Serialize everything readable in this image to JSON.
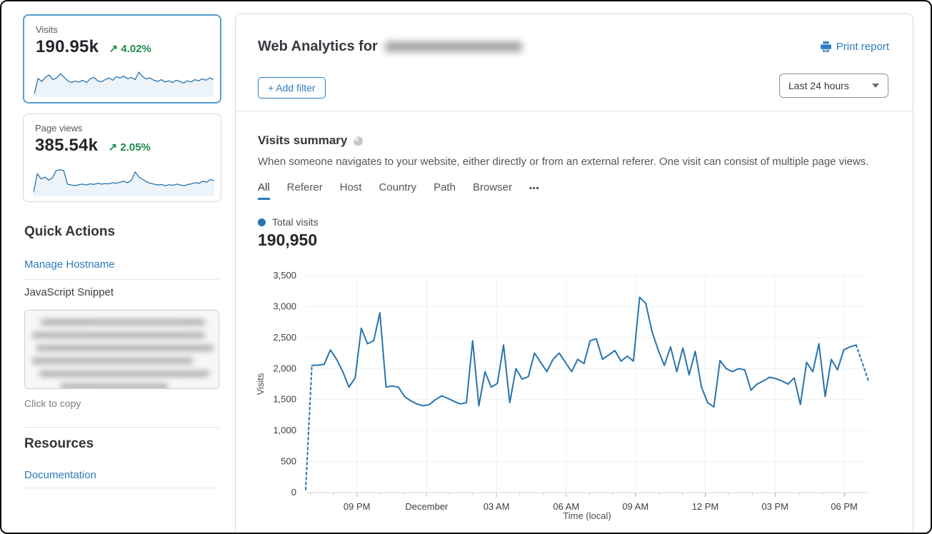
{
  "sidebar": {
    "metric_cards": [
      {
        "label": "Visits",
        "value": "190.95k",
        "trend_arrow": "↗",
        "trend": "4.02%",
        "selected": true
      },
      {
        "label": "Page views",
        "value": "385.54k",
        "trend_arrow": "↗",
        "trend": "2.05%",
        "selected": false
      }
    ],
    "quick_actions": {
      "title": "Quick Actions",
      "manage_hostname_link": "Manage Hostname",
      "snippet_label": "JavaScript Snippet",
      "copy_hint": "Click to copy"
    },
    "resources": {
      "title": "Resources",
      "documentation_link": "Documentation"
    }
  },
  "main": {
    "title_prefix": "Web Analytics for",
    "print_report_label": "Print report",
    "add_filter_label": "+ Add filter",
    "time_range_value": "Last 24 hours",
    "section": {
      "title": "Visits summary",
      "description": "When someone navigates to your website, either directly or from an external referer. One visit can consist of multiple page views.",
      "tabs": [
        "All",
        "Referer",
        "Host",
        "Country",
        "Path",
        "Browser"
      ],
      "active_tab": "All",
      "more_tabs_icon": "•••",
      "legend_label": "Total visits",
      "total_value": "190,950"
    }
  },
  "colors": {
    "accent_blue": "#2c7bbf",
    "chart_line_blue": "#2774ae",
    "trend_green": "#1f8a4f",
    "selected_card_border": "#539fd3"
  },
  "chart_data": [
    {
      "id": "visits-sparkline",
      "type": "line",
      "title": "Visits (sparkline, relative scale 0-100)",
      "values": [
        4,
        58,
        48,
        62,
        70,
        54,
        60,
        74,
        62,
        50,
        44,
        49,
        46,
        52,
        44,
        57,
        62,
        50,
        47,
        54,
        60,
        52,
        64,
        60,
        66,
        57,
        62,
        54,
        80,
        64,
        57,
        60,
        52,
        48,
        54,
        46,
        50,
        44,
        52,
        48,
        42,
        50,
        46,
        54,
        50,
        57,
        52,
        60,
        54
      ]
    },
    {
      "id": "pageviews-sparkline",
      "type": "line",
      "title": "Page views (sparkline, relative scale 0-100)",
      "values": [
        8,
        72,
        54,
        60,
        50,
        57,
        83,
        85,
        83,
        36,
        33,
        31,
        34,
        36,
        33,
        37,
        35,
        39,
        36,
        38,
        37,
        41,
        39,
        43,
        46,
        41,
        49,
        78,
        60,
        52,
        44,
        39,
        36,
        33,
        35,
        31,
        34,
        32,
        36,
        33,
        31,
        35,
        37,
        41,
        39,
        46,
        43,
        52,
        48
      ]
    },
    {
      "id": "total-visits",
      "type": "line",
      "title": "Total visits",
      "xlabel": "Time (local)",
      "ylabel": "Visits",
      "ylim": [
        0,
        3500
      ],
      "grid": true,
      "line_color": "#2774ae",
      "dashed_head_points": 2,
      "dashed_tail_points": 3,
      "yticks": [
        {
          "value": 0,
          "label": "0"
        },
        {
          "value": 500,
          "label": "500"
        },
        {
          "value": 1000,
          "label": "1,000"
        },
        {
          "value": 1500,
          "label": "1,500"
        },
        {
          "value": 2000,
          "label": "2,000"
        },
        {
          "value": 2500,
          "label": "2,500"
        },
        {
          "value": 3000,
          "label": "3,000"
        },
        {
          "value": 3500,
          "label": "3,500"
        }
      ],
      "xticks": [
        {
          "pos": 0.091,
          "label": "09 PM"
        },
        {
          "pos": 0.215,
          "label": "December"
        },
        {
          "pos": 0.339,
          "label": "03 AM"
        },
        {
          "pos": 0.463,
          "label": "06 AM"
        },
        {
          "pos": 0.586,
          "label": "09 AM"
        },
        {
          "pos": 0.71,
          "label": "12 PM"
        },
        {
          "pos": 0.834,
          "label": "03 PM"
        },
        {
          "pos": 0.957,
          "label": "06 PM"
        }
      ],
      "values": [
        50,
        2050,
        2055,
        2070,
        2300,
        2150,
        1950,
        1700,
        1850,
        2650,
        2400,
        2450,
        2900,
        1700,
        1720,
        1700,
        1550,
        1480,
        1430,
        1400,
        1420,
        1500,
        1560,
        1520,
        1470,
        1430,
        1450,
        2450,
        1400,
        1950,
        1700,
        1760,
        2380,
        1450,
        2000,
        1830,
        1870,
        2250,
        2100,
        1950,
        2150,
        2250,
        2100,
        1950,
        2150,
        2080,
        2450,
        2480,
        2150,
        2220,
        2290,
        2120,
        2200,
        2120,
        3150,
        3050,
        2600,
        2300,
        2050,
        2350,
        1950,
        2330,
        1900,
        2280,
        1700,
        1450,
        1380,
        2130,
        2000,
        1950,
        2000,
        1980,
        1650,
        1750,
        1800,
        1860,
        1840,
        1800,
        1750,
        1850,
        1420,
        2100,
        1950,
        2400,
        1550,
        2150,
        1980,
        2300,
        2350,
        2380,
        2100,
        1800
      ]
    }
  ]
}
